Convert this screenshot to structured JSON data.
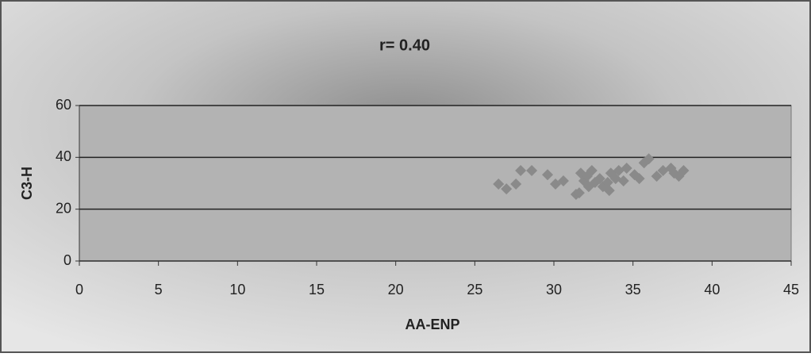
{
  "chart_data": {
    "type": "scatter",
    "title": "r= 0.40",
    "xlabel": "AA-ENP",
    "ylabel": "C3-H",
    "x": [
      26.5,
      27.0,
      27.6,
      27.9,
      28.6,
      29.6,
      30.1,
      30.6,
      31.4,
      31.6,
      31.7,
      31.9,
      32.1,
      32.4,
      32.2,
      32.6,
      32.9,
      33.1,
      33.4,
      33.5,
      33.6,
      33.9,
      34.1,
      34.4,
      34.6,
      35.1,
      35.4,
      35.7,
      36.0,
      36.5,
      36.9,
      37.4,
      37.6,
      37.9,
      38.2
    ],
    "y": [
      29.7,
      27.8,
      29.7,
      34.9,
      34.9,
      33.3,
      29.7,
      30.9,
      25.7,
      26.3,
      33.9,
      30.9,
      32.7,
      34.9,
      28.7,
      30.3,
      31.8,
      28.7,
      30.3,
      27.2,
      33.9,
      31.8,
      34.9,
      30.9,
      35.8,
      33.3,
      31.8,
      37.9,
      39.4,
      32.7,
      34.9,
      35.8,
      33.9,
      32.7,
      34.9
    ],
    "color": "#8a8a8a",
    "xlim": [
      0,
      45
    ],
    "xticks": [
      0,
      5,
      10,
      15,
      20,
      25,
      30,
      35,
      40,
      45
    ],
    "ylim": [
      0,
      60
    ],
    "yticks": [
      0,
      20,
      40,
      60
    ],
    "grid": true
  }
}
